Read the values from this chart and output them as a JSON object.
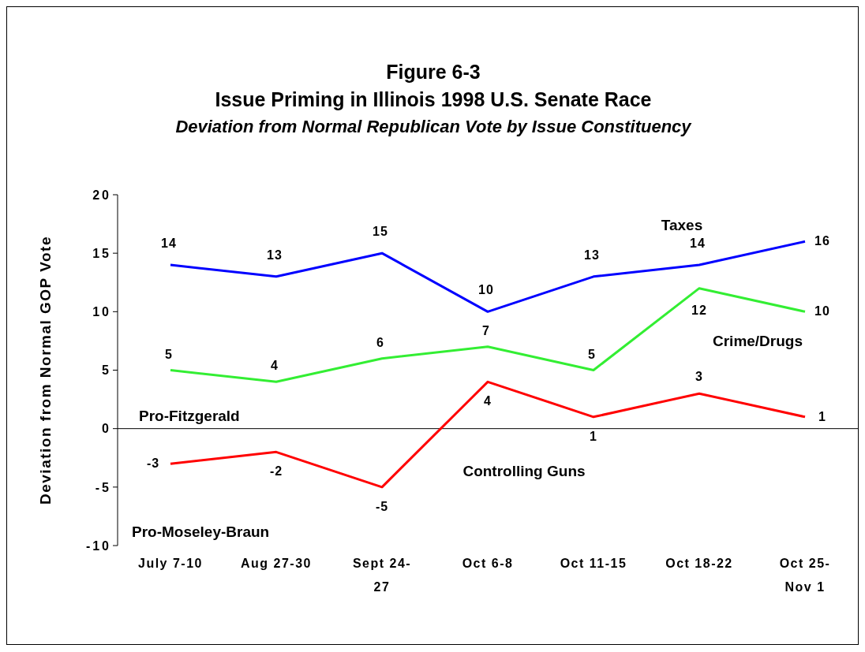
{
  "chart_data": {
    "type": "line",
    "title": "Figure 6-3",
    "subtitle": "Issue Priming in Illinois 1998 U.S. Senate Race\nDeviation from Normal Republican Vote by Issue Constituency",
    "ylabel": "Deviation from Normal GOP Vote",
    "categories": [
      "July 7-10",
      "Aug 27-30",
      "Sept 24-27",
      "Oct 6-8",
      "Oct 11-15",
      "Oct 18-22",
      "Oct 25-Nov 1"
    ],
    "series": [
      {
        "name": "Taxes",
        "color": "#0000ff",
        "values": [
          14,
          13,
          15,
          10,
          13,
          14,
          16
        ]
      },
      {
        "name": "Crime/Drugs",
        "color": "#33ee33",
        "values": [
          5,
          4,
          6,
          7,
          5,
          12,
          10
        ]
      },
      {
        "name": "Controlling Guns",
        "color": "#ff0000",
        "values": [
          -3,
          -2,
          -5,
          4,
          1,
          3,
          1
        ]
      }
    ],
    "ref_lines": [
      {
        "axis": "y",
        "value": 0,
        "color": "#000000"
      }
    ],
    "ylim": [
      -10,
      20
    ],
    "yticks": [
      -10,
      -5,
      0,
      5,
      10,
      15,
      20
    ],
    "grid": false,
    "legend": false,
    "marker": "none",
    "line_style": "solid",
    "data_labels": true,
    "annotations": [
      "Pro-Fitzgerald",
      "Pro-Moseley-Braun"
    ]
  }
}
